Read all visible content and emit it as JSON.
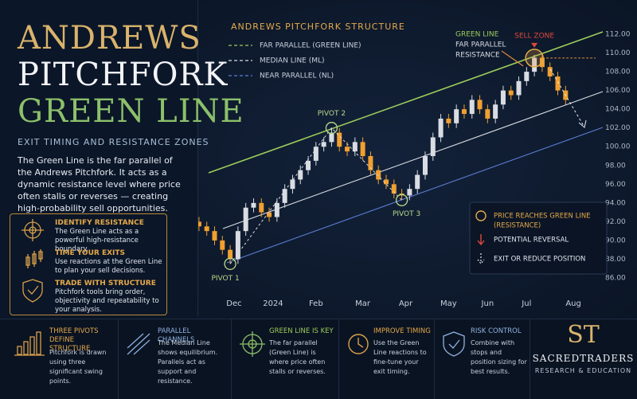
{
  "left_panel": {
    "title": [
      "ANDREWS",
      "PITCHFORK",
      "GREEN LINE"
    ],
    "subtitle": "EXIT TIMING AND RESISTANCE ZONES",
    "intro": "The Green Line is the far parallel of the Andrews Pitchfork. It acts as a dynamic resistance level where price often stalls or reverses — creating high-probability sell opportunities.",
    "tips": [
      {
        "heading": "IDENTIFY RESISTANCE",
        "text": "The Green Line acts as a powerful high-resistance boundary."
      },
      {
        "heading": "TIME YOUR EXITS",
        "text": "Use reactions at the Green Line to plan your sell decisions."
      },
      {
        "heading": "TRADE WITH STRUCTURE",
        "text": "Pitchfork tools bring order, objectivity and repeatability to your analysis."
      }
    ]
  },
  "bottom_strip": [
    {
      "heading": "THREE PIVOTS DEFINE STRUCTURE",
      "text": "Pitchfork is drawn using three significant swing points."
    },
    {
      "heading": "PARALLEL CHANNELS",
      "text": "The Median Line shows equilibrium. Parallels act as support and resistance."
    },
    {
      "heading": "GREEN LINE IS KEY",
      "text": "The far parallel (Green Line) is where price often stalls or reverses."
    },
    {
      "heading": "IMPROVE TIMING",
      "text": "Use the Green Line reactions to fine-tune your exit timing."
    },
    {
      "heading": "RISK CONTROL",
      "text": "Combine with stops and position sizing for best results."
    }
  ],
  "brand": {
    "monogram": "ST",
    "name": "SACREDTRADERS",
    "tagline": "RESEARCH & EDUCATION"
  },
  "chart_data": {
    "type": "candlestick",
    "legend_title": "ANDREWS PITCHFORK STRUCTURE",
    "pitchfork": [
      {
        "name": "FAR PARALLEL (GREEN LINE)",
        "color": "#9ccc5a"
      },
      {
        "name": "MEDIAN LINE (ML)",
        "color": "#d8dce2"
      },
      {
        "name": "NEAR PARALLEL (NL)",
        "color": "#5b7fd6"
      }
    ],
    "up_color": "#d9dde3",
    "down_color": "#f0a030",
    "x": [
      0,
      1,
      2,
      3,
      4,
      5,
      6,
      7,
      8,
      9,
      10,
      11,
      12,
      13,
      14,
      15,
      16,
      17,
      18,
      19,
      20,
      21,
      22,
      23,
      24,
      25,
      26,
      27,
      28,
      29,
      30,
      31,
      32,
      33,
      34,
      35,
      36,
      37,
      38,
      39,
      40,
      41,
      42,
      43,
      44,
      45,
      46,
      47
    ],
    "open": [
      92,
      91.5,
      91,
      90,
      89,
      88,
      91,
      93.5,
      94,
      93,
      92.5,
      94,
      95.5,
      96.5,
      97.5,
      98.5,
      100,
      100.5,
      101.5,
      100,
      99.5,
      100.5,
      99,
      97.5,
      96.5,
      96,
      95,
      94.8,
      95.5,
      97,
      99,
      101,
      103,
      102.5,
      104,
      103.5,
      105,
      104,
      103,
      104.5,
      106,
      105.5,
      107,
      108,
      109.5,
      108.5,
      107.5,
      106
    ],
    "high": [
      92.5,
      92,
      91.5,
      90.5,
      89.5,
      91.5,
      94,
      94.5,
      94.5,
      93.5,
      94.5,
      96,
      97,
      98,
      99,
      100.5,
      101,
      102,
      102,
      100.5,
      101,
      101,
      99.5,
      98,
      97,
      96.5,
      95.5,
      96,
      97.5,
      99.5,
      101.5,
      103.5,
      103.5,
      104.5,
      104.5,
      105.5,
      105.5,
      104.5,
      105,
      106.5,
      106.5,
      107.5,
      108.5,
      109.8,
      109.8,
      109,
      108,
      106.5
    ],
    "low": [
      91,
      90.5,
      89.5,
      88.5,
      87.5,
      87.5,
      90.5,
      93,
      92.5,
      92,
      92,
      93.5,
      95,
      96,
      97,
      98,
      99.5,
      100,
      99.5,
      99,
      99,
      98.5,
      97,
      96,
      95.5,
      94.5,
      94.3,
      94.3,
      95,
      96.5,
      98.5,
      100.5,
      102,
      102,
      103,
      103,
      103.5,
      102.5,
      102.5,
      104,
      105,
      105,
      106.5,
      107.5,
      108,
      107,
      105.5,
      104.5
    ],
    "close": [
      91.5,
      91,
      90,
      89,
      88,
      91,
      93.5,
      94,
      93,
      92.5,
      94,
      95.5,
      96.5,
      97.5,
      98.5,
      100,
      100.5,
      101.5,
      100,
      99.5,
      100.5,
      99,
      97.5,
      96.5,
      96,
      95,
      94.8,
      95.5,
      97,
      99,
      101,
      103,
      102.5,
      104,
      103.5,
      105,
      104,
      103,
      104.5,
      106,
      105.5,
      107,
      108,
      109.5,
      108.5,
      107.5,
      106,
      105
    ],
    "xlim": [
      -0.5,
      48.5
    ],
    "xticks": [
      {
        "value": 4.5,
        "label": "Dec"
      },
      {
        "value": 9.5,
        "label": "2024"
      },
      {
        "value": 15,
        "label": "Feb"
      },
      {
        "value": 21,
        "label": "Mar"
      },
      {
        "value": 26.5,
        "label": "Apr"
      },
      {
        "value": 32,
        "label": "May"
      },
      {
        "value": 37,
        "label": "Jun"
      },
      {
        "value": 42,
        "label": "Jul"
      },
      {
        "value": 48,
        "label": "Aug"
      }
    ],
    "ylim": [
      86,
      112
    ],
    "yticks": [
      {
        "value": 86,
        "label": "86.00"
      },
      {
        "value": 88,
        "label": "88.00"
      },
      {
        "value": 90,
        "label": "90.00"
      },
      {
        "value": 92,
        "label": "92.00"
      },
      {
        "value": 94,
        "label": "94.00"
      },
      {
        "value": 96,
        "label": "96.00"
      },
      {
        "value": 98,
        "label": "98.00"
      },
      {
        "value": 100,
        "label": "100.00"
      },
      {
        "value": 102,
        "label": "102.00"
      },
      {
        "value": 104,
        "label": "104.00"
      },
      {
        "value": 106,
        "label": "106.00"
      },
      {
        "value": 108,
        "label": "108.00"
      },
      {
        "value": 110,
        "label": "110.00"
      },
      {
        "value": 112,
        "label": "112.00"
      }
    ],
    "grid": false,
    "pivots": [
      "PIVOT 1",
      "PIVOT 2",
      "PIVOT 3"
    ],
    "callout": [
      "GREEN LINE",
      "FAR PARALLEL",
      "RESISTANCE"
    ],
    "sell_zone": "SELL ZONE",
    "signals": [
      {
        "text": "PRICE REACHES GREEN LINE",
        "subtext": "(RESISTANCE)"
      },
      {
        "text": "POTENTIAL REVERSAL"
      },
      {
        "text": "EXIT OR REDUCE POSITION"
      }
    ]
  }
}
